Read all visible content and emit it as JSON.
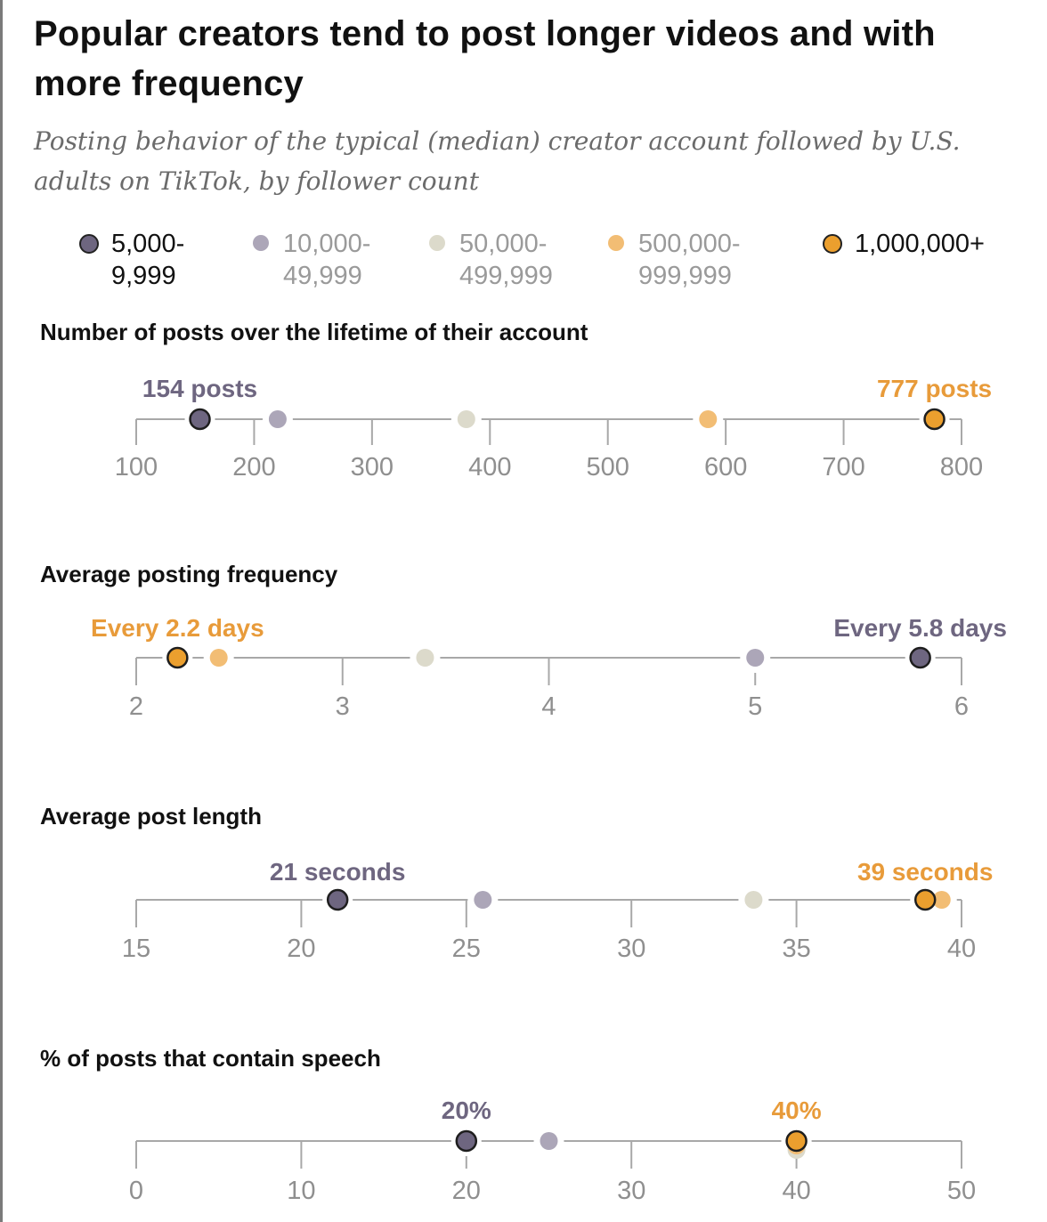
{
  "colors": {
    "g1": "#6e6680",
    "g2": "#aca6b8",
    "g3": "#dcdacb",
    "g4": "#f2bd74",
    "g5": "#eb9f2e",
    "axis": "#a8a8a8",
    "tick_text": "#8f8f8f",
    "annotation_dark": "#6e6680",
    "annotation_orange": "#e89b3a"
  },
  "header": {
    "title": "Popular creators tend to post longer videos and with more frequency",
    "subtitle": "Posting behavior of the typical (median) creator account followed by U.S. adults on TikTok, by follower count"
  },
  "legend": [
    {
      "id": "g1",
      "line1": "5,000-",
      "line2": "9,999",
      "emphasis": true
    },
    {
      "id": "g2",
      "line1": "10,000-",
      "line2": "49,999",
      "emphasis": false
    },
    {
      "id": "g3",
      "line1": "50,000-",
      "line2": "499,999",
      "emphasis": false
    },
    {
      "id": "g4",
      "line1": "500,000-",
      "line2": "999,999",
      "emphasis": false
    },
    {
      "id": "g5",
      "line1": "1,000,000+",
      "line2": "",
      "emphasis": true
    }
  ],
  "chart_data": [
    {
      "type": "scatter",
      "subtype": "dot-plot",
      "title": "Number of posts over the lifetime of their account",
      "xlim": [
        100,
        800
      ],
      "ticks": [
        100,
        200,
        300,
        400,
        500,
        600,
        700,
        800
      ],
      "tick_labels": [
        "100",
        "200",
        "300",
        "400",
        "500",
        "600",
        "700",
        "800"
      ],
      "series": [
        {
          "name": "5,000-9,999",
          "group": "g1",
          "value": 154
        },
        {
          "name": "10,000-49,999",
          "group": "g2",
          "value": 220
        },
        {
          "name": "50,000-499,999",
          "group": "g3",
          "value": 380
        },
        {
          "name": "500,000-999,999",
          "group": "g4",
          "value": 585
        },
        {
          "name": "1,000,000+",
          "group": "g5",
          "value": 777
        }
      ],
      "annotations": [
        {
          "text": "154 posts",
          "group": "g1",
          "value": 154
        },
        {
          "text": "777 posts",
          "group": "g5",
          "value": 777
        }
      ]
    },
    {
      "type": "scatter",
      "subtype": "dot-plot",
      "title": "Average posting frequency",
      "xlim": [
        2,
        6
      ],
      "ticks": [
        2,
        3,
        4,
        5,
        6
      ],
      "tick_labels": [
        "2",
        "3",
        "4",
        "5",
        "6"
      ],
      "series": [
        {
          "name": "5,000-9,999",
          "group": "g1",
          "value": 5.8
        },
        {
          "name": "10,000-49,999",
          "group": "g2",
          "value": 5.0
        },
        {
          "name": "50,000-499,999",
          "group": "g3",
          "value": 3.4
        },
        {
          "name": "500,000-999,999",
          "group": "g4",
          "value": 2.4
        },
        {
          "name": "1,000,000+",
          "group": "g5",
          "value": 2.2
        }
      ],
      "annotations": [
        {
          "text": "Every 2.2 days",
          "group": "g5",
          "value": 2.2
        },
        {
          "text": "Every 5.8 days",
          "group": "g1",
          "value": 5.8
        }
      ]
    },
    {
      "type": "scatter",
      "subtype": "dot-plot",
      "title": "Average post length",
      "xlim": [
        15,
        40
      ],
      "ticks": [
        15,
        20,
        25,
        30,
        35,
        40
      ],
      "tick_labels": [
        "15",
        "20",
        "25",
        "30",
        "35",
        "40"
      ],
      "series": [
        {
          "name": "5,000-9,999",
          "group": "g1",
          "value": 21.1
        },
        {
          "name": "10,000-49,999",
          "group": "g2",
          "value": 25.5
        },
        {
          "name": "50,000-499,999",
          "group": "g3",
          "value": 33.7
        },
        {
          "name": "500,000-999,999",
          "group": "g4",
          "value": 39.4
        },
        {
          "name": "1,000,000+",
          "group": "g5",
          "value": 38.9
        }
      ],
      "annotations": [
        {
          "text": "21 seconds",
          "group": "g1",
          "value": 21.1
        },
        {
          "text": "39 seconds",
          "group": "g5",
          "value": 38.9
        }
      ]
    },
    {
      "type": "scatter",
      "subtype": "dot-plot",
      "title": "% of posts that contain speech",
      "xlim": [
        0,
        50
      ],
      "ticks": [
        0,
        10,
        20,
        30,
        40,
        50
      ],
      "tick_labels": [
        "0",
        "10",
        "20",
        "30",
        "40",
        "50"
      ],
      "series": [
        {
          "name": "5,000-9,999",
          "group": "g1",
          "value": 20
        },
        {
          "name": "10,000-49,999",
          "group": "g2",
          "value": 25
        },
        {
          "name": "50,000-499,999",
          "group": "g3",
          "value": 40
        },
        {
          "name": "500,000-999,999",
          "group": "g4",
          "value": 40
        },
        {
          "name": "1,000,000+",
          "group": "g5",
          "value": 40
        }
      ],
      "annotations": [
        {
          "text": "20%",
          "group": "g1",
          "value": 20
        },
        {
          "text": "40%",
          "group": "g5",
          "value": 40
        }
      ]
    }
  ]
}
